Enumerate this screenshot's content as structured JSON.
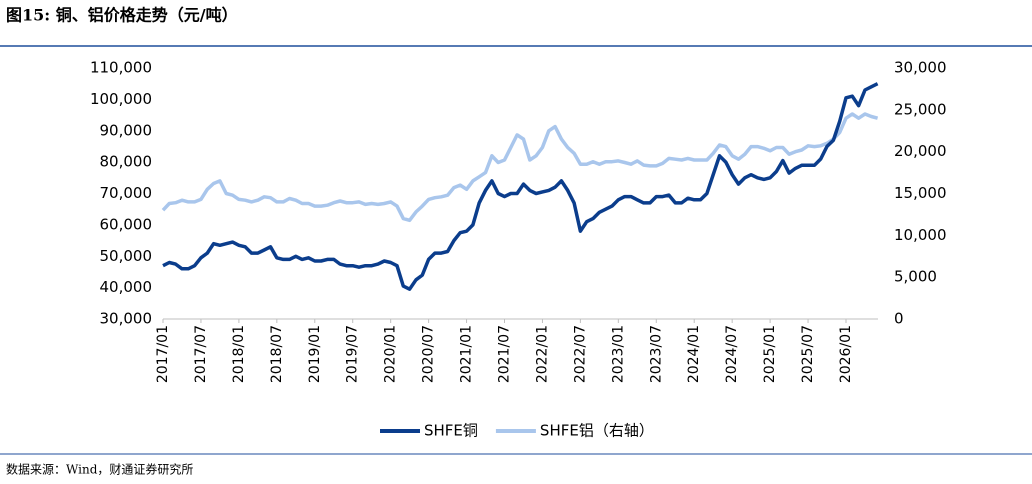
{
  "chart_data": {
    "type": "line",
    "title": "图15: 铜、铝价格走势（元/吨）",
    "source": "数据来源：Wind，财通证券研究所",
    "categories": [
      "2017/01",
      null,
      null,
      null,
      null,
      null,
      "2017/07",
      null,
      null,
      null,
      null,
      null,
      "2018/01",
      null,
      null,
      null,
      null,
      null,
      "2018/07",
      null,
      null,
      null,
      null,
      null,
      "2019/01",
      null,
      null,
      null,
      null,
      null,
      "2019/07",
      null,
      null,
      null,
      null,
      null,
      "2020/01",
      null,
      null,
      null,
      null,
      null,
      "2020/07",
      null,
      null,
      null,
      null,
      null,
      "2021/01",
      null,
      null,
      null,
      null,
      null,
      "2021/07",
      null,
      null,
      null,
      null,
      null,
      "2022/01",
      null,
      null,
      null,
      null,
      null,
      "2022/07",
      null,
      null,
      null,
      null,
      null,
      "2023/01",
      null,
      null,
      null,
      null,
      null,
      "2023/07",
      null,
      null,
      null,
      null,
      null,
      "2024/01",
      null,
      null,
      null,
      null,
      null,
      "2024/07",
      null,
      null,
      null,
      null,
      null,
      "2025/01",
      null,
      null,
      null,
      null,
      null,
      "2025/07",
      null,
      null,
      null,
      null,
      null,
      "2026/01",
      null,
      null,
      null,
      null,
      null
    ],
    "series": [
      {
        "name": "SHFE铜",
        "color": "#0b3d8c",
        "values": [
          47000,
          48000,
          47500,
          46000,
          46000,
          47000,
          49500,
          51000,
          54000,
          53500,
          54000,
          54500,
          53500,
          53000,
          51000,
          51000,
          52000,
          53000,
          49500,
          49000,
          49000,
          50000,
          49000,
          49500,
          48500,
          48500,
          49000,
          49000,
          47500,
          47000,
          47000,
          46500,
          47000,
          47000,
          47500,
          48500,
          48000,
          47000,
          40500,
          39500,
          42500,
          44000,
          49000,
          51000,
          51000,
          51500,
          55000,
          57500,
          58000,
          60000,
          67000,
          71000,
          74000,
          70000,
          69000,
          70000,
          70000,
          73000,
          71000,
          70000,
          70500,
          71000,
          72000,
          74000,
          71000,
          67000,
          58000,
          61000,
          62000,
          64000,
          65000,
          66000,
          68000,
          69000,
          69000,
          68000,
          67000,
          67000,
          69000,
          69000,
          69500,
          67000,
          67000,
          68500,
          68000,
          68000,
          70000,
          76000,
          82000,
          80000,
          76000,
          73000,
          75000,
          76000,
          75000,
          74500,
          75000,
          77000,
          80500,
          76500,
          78000,
          79000,
          79000,
          79000,
          81000,
          85000,
          87000,
          93000,
          100500,
          101000,
          98000,
          103000,
          104000,
          105000
        ]
      },
      {
        "name": "SHFE铝（右轴）",
        "color": "#a9c6ec",
        "axis": "y2",
        "values": [
          13000,
          13800,
          13900,
          14200,
          14000,
          14000,
          14300,
          15500,
          16200,
          16500,
          15000,
          14800,
          14300,
          14200,
          14000,
          14200,
          14600,
          14500,
          14000,
          14000,
          14400,
          14200,
          13800,
          13800,
          13500,
          13500,
          13600,
          13900,
          14100,
          13900,
          13900,
          14000,
          13700,
          13800,
          13700,
          13800,
          14000,
          13500,
          12000,
          11800,
          12800,
          13500,
          14300,
          14500,
          14600,
          14800,
          15700,
          16000,
          15500,
          16500,
          17000,
          17500,
          19500,
          18700,
          19000,
          20500,
          22000,
          21500,
          19000,
          19500,
          20500,
          22500,
          23000,
          21500,
          20500,
          19800,
          18500,
          18500,
          18800,
          18500,
          18800,
          18800,
          18900,
          18700,
          18500,
          18900,
          18400,
          18300,
          18300,
          18600,
          19200,
          19100,
          19000,
          19200,
          19000,
          19000,
          19000,
          19800,
          20800,
          20600,
          19500,
          19100,
          19700,
          20600,
          20600,
          20400,
          20100,
          20500,
          20500,
          19700,
          20000,
          20200,
          20700,
          20600,
          20700,
          21000,
          21500,
          22300,
          24000,
          24500,
          24000,
          24500,
          24200,
          24000
        ]
      }
    ],
    "ylim": [
      30000,
      110000
    ],
    "yticks": [
      {
        "value": 30000,
        "label": "30,000"
      },
      {
        "value": 40000,
        "label": "40,000"
      },
      {
        "value": 50000,
        "label": "50,000"
      },
      {
        "value": 60000,
        "label": "60,000"
      },
      {
        "value": 70000,
        "label": "70,000"
      },
      {
        "value": 80000,
        "label": "80,000"
      },
      {
        "value": 90000,
        "label": "90,000"
      },
      {
        "value": 100000,
        "label": "100,000"
      },
      {
        "value": 110000,
        "label": "110,000"
      }
    ],
    "y2lim": [
      0,
      30000
    ],
    "y2ticks": [
      0,
      {
        "value": 5000,
        "label": "5,000"
      },
      {
        "value": 10000,
        "label": "10,000"
      },
      {
        "value": 15000,
        "label": "15,000"
      },
      {
        "value": 20000,
        "label": "20,000"
      },
      {
        "value": 25000,
        "label": "25,000"
      },
      {
        "value": 30000,
        "label": "30,000"
      }
    ],
    "legend": "bottom"
  }
}
